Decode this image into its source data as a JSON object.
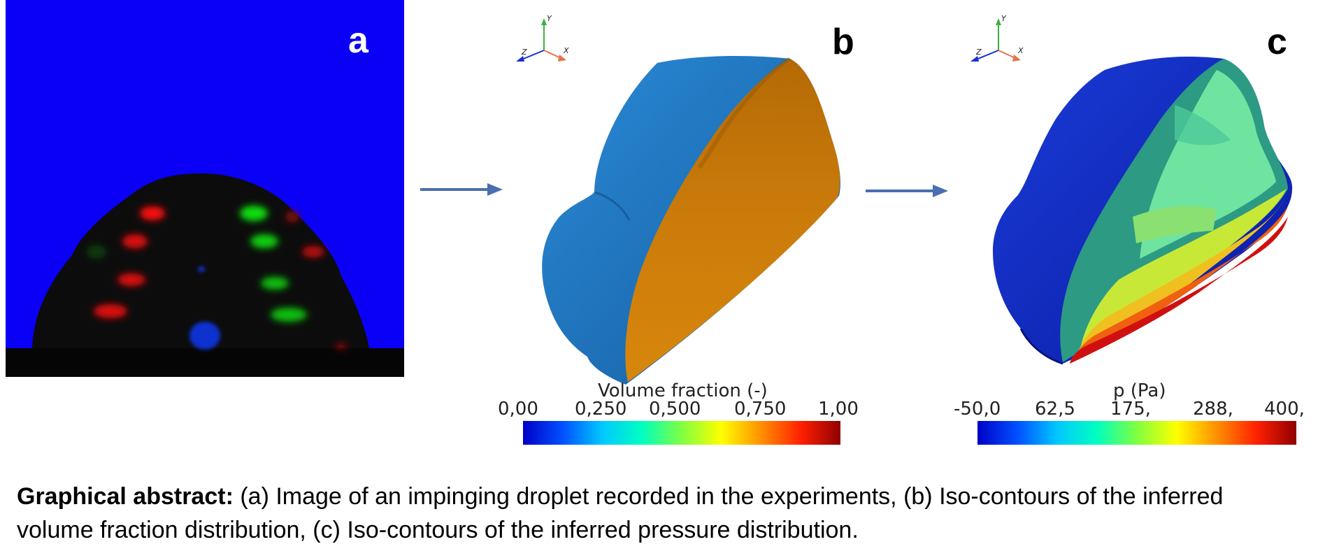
{
  "panels": {
    "a": {
      "letter": "a"
    },
    "b": {
      "letter": "b"
    },
    "c": {
      "letter": "c"
    }
  },
  "triads": {
    "y": "Y",
    "z": "Z",
    "x": "X"
  },
  "colorbar_b": {
    "title": "Volume fraction (-)",
    "ticks": [
      "0,00",
      "0,250",
      "0,500",
      "0,750",
      "1,00"
    ],
    "colormap": [
      "#0000c8",
      "#0050ff",
      "#00c8ff",
      "#00ffc0",
      "#80ff40",
      "#ffff00",
      "#ff9000",
      "#ff2000",
      "#900000"
    ]
  },
  "colorbar_c": {
    "title": "p (Pa)",
    "ticks": [
      "-50,0",
      "62,5",
      "175,",
      "288,",
      "400,"
    ],
    "colormap": [
      "#0000c8",
      "#0050ff",
      "#00c8ff",
      "#00ffc0",
      "#80ff40",
      "#ffff00",
      "#ff9000",
      "#ff2000",
      "#900000"
    ]
  },
  "caption": {
    "bold": "Graphical abstract:",
    "text": " (a) Image of an impinging droplet recorded in the experiments, (b) Iso-contours of the inferred volume fraction distribution, (c) Iso-contours of the inferred pressure distribution."
  },
  "colors": {
    "blue_bg": "#0a00f5",
    "arrow": "#4a6fb0",
    "shell_blue": "#1e7cc8",
    "inner_orange": "#d4820a"
  }
}
